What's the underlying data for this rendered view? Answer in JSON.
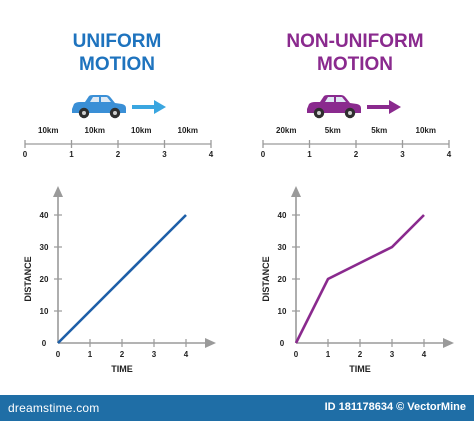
{
  "left": {
    "title_line1": "UNIFORM",
    "title_line2": "MOTION",
    "segment_labels": [
      "10km",
      "10km",
      "10km",
      "10km"
    ],
    "axis_ticks": [
      "0",
      "1",
      "2",
      "3",
      "4"
    ],
    "car_color": "#3a8fd6",
    "arrow_color": "#3aa6e0"
  },
  "right": {
    "title_line1": "NON-UNIFORM",
    "title_line2": "MOTION",
    "segment_labels": [
      "20km",
      "5km",
      "5km",
      "10km"
    ],
    "axis_ticks": [
      "0",
      "1",
      "2",
      "3",
      "4"
    ],
    "car_color": "#8a2a8e",
    "arrow_color": "#8a2a8e"
  },
  "chart_data": [
    {
      "type": "line",
      "title": "",
      "xlabel": "TIME",
      "ylabel": "DISTANCE",
      "x": [
        0,
        1,
        2,
        3,
        4
      ],
      "series": [
        {
          "values": [
            0,
            10,
            20,
            30,
            40
          ]
        }
      ],
      "x_ticks": [
        "0",
        "1",
        "2",
        "3",
        "4"
      ],
      "y_ticks": [
        "0",
        "10",
        "20",
        "30",
        "40"
      ],
      "xlim": [
        0,
        4
      ],
      "ylim": [
        0,
        40
      ],
      "line_color": "#1e5fa8",
      "grid": false
    },
    {
      "type": "line",
      "title": "",
      "xlabel": "TIME",
      "ylabel": "DISTANCE",
      "x": [
        0,
        1,
        2.5,
        3,
        4
      ],
      "series": [
        {
          "values": [
            0,
            20,
            27.5,
            30,
            40
          ]
        }
      ],
      "x_ticks": [
        "0",
        "1",
        "2",
        "3",
        "4"
      ],
      "y_ticks": [
        "0",
        "10",
        "20",
        "30",
        "40"
      ],
      "xlim": [
        0,
        4
      ],
      "ylim": [
        0,
        40
      ],
      "line_color": "#8a2a8e",
      "grid": false
    }
  ],
  "footer": {
    "brand": "dreamstime.com",
    "credit": "ID 181178634 © VectorMine"
  }
}
